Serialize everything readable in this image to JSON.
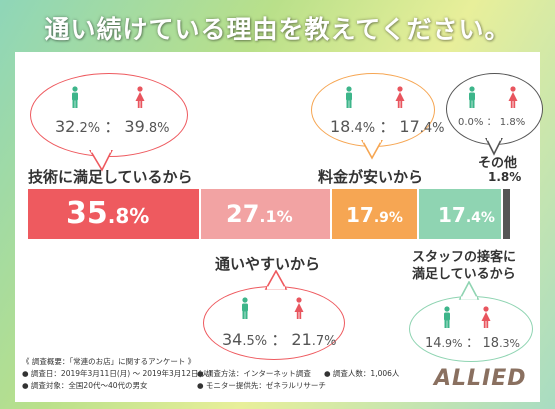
{
  "title": "通い続けている理由を教えてください。",
  "chart_data": {
    "type": "bar",
    "categories": [
      "技術に満足しているから",
      "通いやすいから",
      "料金が安いから",
      "スタッフの接客に満足しているから",
      "その他"
    ],
    "values": [
      35.8,
      27.1,
      17.9,
      17.4,
      1.8
    ],
    "male": [
      32.2,
      34.5,
      18.4,
      14.9,
      0.0
    ],
    "female": [
      39.8,
      21.7,
      17.4,
      18.3,
      1.8
    ],
    "colors": [
      "#ee5a5f",
      "#f2a3a3",
      "#f6a653",
      "#8fd4b2",
      "#555555"
    ],
    "unit": "%"
  },
  "labels": {
    "tech": "技術に満足しているから",
    "access": "通いやすいから",
    "price": "料金が安いから",
    "staff_1": "スタッフの接客に",
    "staff_2": "満足しているから",
    "other": "その他",
    "other_val": "1.8%"
  },
  "bar_text": {
    "tech_int": "35",
    "tech_dec": ".8%",
    "access_int": "27",
    "access_dec": ".1%",
    "price_int": "17",
    "price_dec": ".9%",
    "staff_int": "17",
    "staff_dec": ".4%"
  },
  "bubbles": {
    "tech": {
      "m_int": "32",
      "m_dec": ".2%",
      "f_int": "39",
      "f_dec": ".8%"
    },
    "price": {
      "m_int": "18",
      "m_dec": ".4%",
      "f_int": "17",
      "f_dec": ".4%"
    },
    "other": {
      "m_int": "0",
      "m_dec": ".0%",
      "f_int": "1",
      "f_dec": ".8%"
    },
    "access": {
      "m_int": "34",
      "m_dec": ".5%",
      "f_int": "21",
      "f_dec": ".7%"
    },
    "staff": {
      "m_int": "14",
      "m_dec": ".9%",
      "f_int": "18",
      "f_dec": ".3%"
    }
  },
  "colon": "：",
  "notes": {
    "l1": "《 調査概要：「常連のお店」に関するアンケート 》",
    "l2": "● 調査日：2019年3月11日(月) 〜 2019年3月12日(火)",
    "l3": "● 調査対象：全国20代〜40代の男女",
    "l4": "● 調査方法：インターネット調査",
    "l5": "● 調査人数：1,006人",
    "l6": "● モニター提供先：ゼネラルリサーチ"
  },
  "logo": "ALLIED",
  "person_colors": {
    "male": "#3db58a",
    "female": "#e8555e"
  }
}
